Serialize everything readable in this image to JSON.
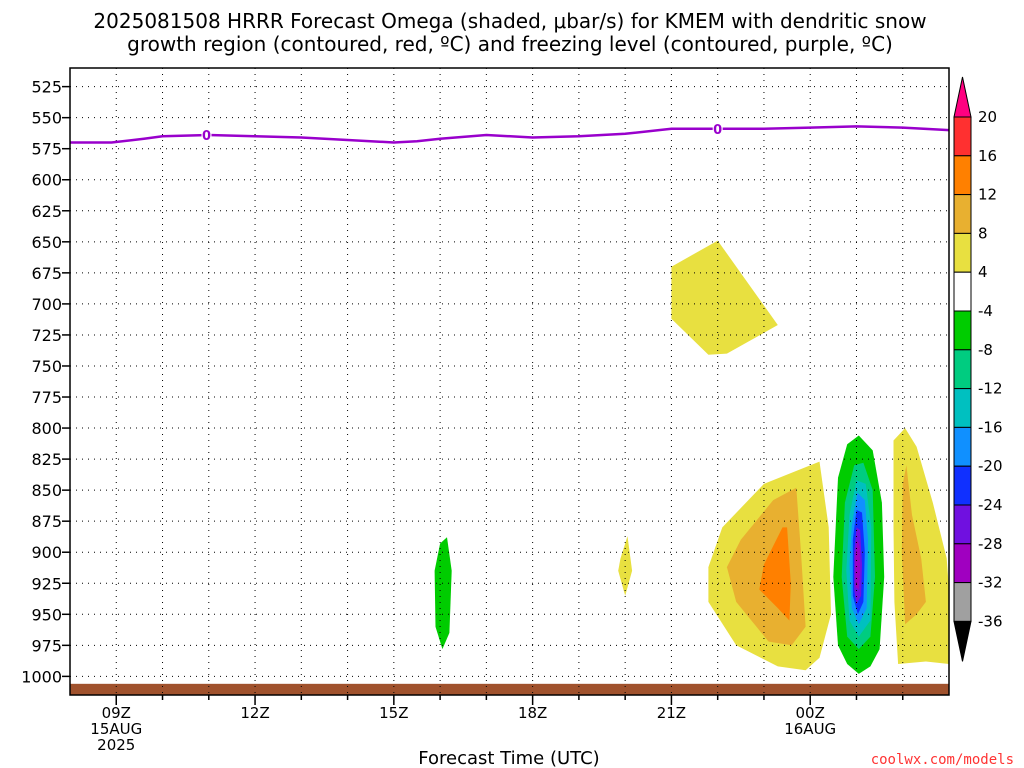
{
  "title_line1": "2025081508 HRRR Forecast Omega (shaded, μbar/s) for KMEM with dendritic snow",
  "title_line2": "growth region (contoured, red, ºC) and freezing level (contoured, purple, ºC)",
  "credit": "coolwx.com/models",
  "chart_data": {
    "type": "time-height cross-section",
    "xlabel": "Forecast Time (UTC)",
    "x_range_hours": [
      8,
      27
    ],
    "x_ticks": [
      {
        "hour": 9,
        "lines": [
          "09Z",
          "15AUG",
          "2025"
        ]
      },
      {
        "hour": 12,
        "lines": [
          "12Z"
        ]
      },
      {
        "hour": 15,
        "lines": [
          "15Z"
        ]
      },
      {
        "hour": 18,
        "lines": [
          "18Z"
        ]
      },
      {
        "hour": 21,
        "lines": [
          "21Z"
        ]
      },
      {
        "hour": 24,
        "lines": [
          "00Z",
          "16AUG"
        ]
      }
    ],
    "y_axis": "pressure (mb)",
    "y_range": [
      510,
      1015
    ],
    "y_ticks": [
      525,
      550,
      575,
      600,
      625,
      650,
      675,
      700,
      725,
      750,
      775,
      800,
      825,
      850,
      875,
      900,
      925,
      950,
      975,
      1000
    ],
    "grid": true,
    "freezing_level": {
      "label": "0",
      "color": "#9900cc",
      "points": [
        [
          8,
          570
        ],
        [
          8.9,
          570
        ],
        [
          9.6,
          567
        ],
        [
          10,
          565
        ],
        [
          11,
          564
        ],
        [
          12,
          565
        ],
        [
          13,
          566
        ],
        [
          14,
          568
        ],
        [
          15,
          570
        ],
        [
          15.5,
          569
        ],
        [
          16,
          567
        ],
        [
          17,
          564
        ],
        [
          18,
          566
        ],
        [
          19,
          565
        ],
        [
          20,
          563
        ],
        [
          21,
          559
        ],
        [
          22,
          559
        ],
        [
          23,
          559
        ],
        [
          24,
          558
        ],
        [
          25,
          557
        ],
        [
          26,
          558
        ],
        [
          27,
          560
        ]
      ],
      "label_hours": [
        10.95,
        22
      ]
    },
    "omega_colorbar": {
      "levels": [
        20,
        16,
        12,
        8,
        4,
        -4,
        -8,
        -12,
        -16,
        -20,
        -24,
        -28,
        -32,
        -36
      ],
      "colors": [
        "#ff0080",
        "#ff3030",
        "#ff8000",
        "#e8b030",
        "#e8e040",
        "#ffffff",
        "#00cc00",
        "#00cc80",
        "#00c0c0",
        "#1090ff",
        "#1030ff",
        "#7010e0",
        "#a000c0",
        "#a0a0a0",
        "#000000"
      ]
    },
    "omega_regions": [
      {
        "level": "4-8",
        "color": "#e8e040",
        "points": [
          [
            21,
            670
          ],
          [
            22,
            649
          ],
          [
            23.3,
            717
          ],
          [
            22.2,
            740
          ],
          [
            21.8,
            741
          ],
          [
            21,
            712
          ]
        ]
      },
      {
        "level": "-4..-8",
        "color": "#00cc00",
        "points": [
          [
            16,
            893
          ],
          [
            16.15,
            888
          ],
          [
            16.25,
            915
          ],
          [
            16.2,
            965
          ],
          [
            16.05,
            978
          ],
          [
            15.9,
            960
          ],
          [
            15.88,
            915
          ]
        ]
      },
      {
        "level": "4-8",
        "color": "#e8e040",
        "points": [
          [
            19.9,
            905
          ],
          [
            20.05,
            887
          ],
          [
            20.15,
            915
          ],
          [
            20.0,
            935
          ],
          [
            19.85,
            915
          ]
        ]
      },
      {
        "level": "4-8",
        "color": "#e8e040",
        "points": [
          [
            22.1,
            880
          ],
          [
            23,
            845
          ],
          [
            24.2,
            827
          ],
          [
            24.4,
            880
          ],
          [
            24.45,
            950
          ],
          [
            24.2,
            985
          ],
          [
            23.9,
            995
          ],
          [
            23.3,
            992
          ],
          [
            22.4,
            975
          ],
          [
            21.8,
            940
          ],
          [
            21.8,
            912
          ]
        ]
      },
      {
        "level": "8-12",
        "color": "#e8b030",
        "points": [
          [
            22.5,
            890
          ],
          [
            23.2,
            858
          ],
          [
            23.7,
            848
          ],
          [
            23.8,
            900
          ],
          [
            23.9,
            960
          ],
          [
            23.6,
            975
          ],
          [
            23.1,
            972
          ],
          [
            22.4,
            940
          ],
          [
            22.2,
            912
          ]
        ]
      },
      {
        "level": "12-16",
        "color": "#ff8000",
        "points": [
          [
            23.0,
            910
          ],
          [
            23.4,
            880
          ],
          [
            23.5,
            880
          ],
          [
            23.58,
            925
          ],
          [
            23.55,
            955
          ],
          [
            23.3,
            945
          ],
          [
            22.9,
            930
          ]
        ]
      },
      {
        "level": "-4..-8",
        "color": "#00cc00",
        "points": [
          [
            24.6,
            840
          ],
          [
            24.8,
            813
          ],
          [
            25.05,
            806
          ],
          [
            25.35,
            818
          ],
          [
            25.55,
            860
          ],
          [
            25.6,
            920
          ],
          [
            25.5,
            978
          ],
          [
            25.3,
            992
          ],
          [
            25.05,
            998
          ],
          [
            24.8,
            990
          ],
          [
            24.6,
            975
          ],
          [
            24.5,
            920
          ]
        ]
      },
      {
        "level": "-8..-12",
        "color": "#00cc80",
        "points": [
          [
            24.75,
            860
          ],
          [
            24.95,
            830
          ],
          [
            25.15,
            828
          ],
          [
            25.35,
            850
          ],
          [
            25.4,
            920
          ],
          [
            25.3,
            968
          ],
          [
            25.05,
            978
          ],
          [
            24.8,
            968
          ],
          [
            24.68,
            920
          ]
        ]
      },
      {
        "level": "-12..-16",
        "color": "#00c0c0",
        "points": [
          [
            24.85,
            870
          ],
          [
            25.0,
            842
          ],
          [
            25.2,
            845
          ],
          [
            25.32,
            880
          ],
          [
            25.3,
            955
          ],
          [
            25.05,
            968
          ],
          [
            24.85,
            955
          ],
          [
            24.78,
            915
          ]
        ]
      },
      {
        "level": "-16..-20",
        "color": "#1090ff",
        "points": [
          [
            24.9,
            878
          ],
          [
            25.02,
            852
          ],
          [
            25.18,
            858
          ],
          [
            25.25,
            890
          ],
          [
            25.22,
            945
          ],
          [
            25.05,
            958
          ],
          [
            24.9,
            945
          ],
          [
            24.85,
            910
          ]
        ]
      },
      {
        "level": "-20..-24",
        "color": "#1030ff",
        "points": [
          [
            24.92,
            890
          ],
          [
            25.0,
            866
          ],
          [
            25.12,
            868
          ],
          [
            25.18,
            900
          ],
          [
            25.15,
            940
          ],
          [
            25.03,
            950
          ],
          [
            24.92,
            935
          ]
        ]
      },
      {
        "level": "-24..-28",
        "color": "#7010e0",
        "points": [
          [
            24.95,
            900
          ],
          [
            25.0,
            880
          ],
          [
            25.08,
            882
          ],
          [
            25.12,
            910
          ],
          [
            25.1,
            935
          ],
          [
            25.0,
            942
          ],
          [
            24.95,
            930
          ]
        ]
      },
      {
        "level": "-28..-32",
        "color": "#a000c0",
        "points": [
          [
            24.97,
            905
          ],
          [
            25.02,
            890
          ],
          [
            25.07,
            895
          ],
          [
            25.08,
            915
          ],
          [
            25.05,
            930
          ],
          [
            24.98,
            928
          ]
        ]
      },
      {
        "level": "4-8",
        "color": "#e8e040",
        "points": [
          [
            25.8,
            810
          ],
          [
            26.05,
            800
          ],
          [
            26.3,
            815
          ],
          [
            26.65,
            860
          ],
          [
            26.95,
            905
          ],
          [
            27,
            930
          ],
          [
            27,
            990
          ],
          [
            26.5,
            988
          ],
          [
            25.9,
            990
          ],
          [
            25.82,
            940
          ],
          [
            25.8,
            880
          ]
        ]
      },
      {
        "level": "8-12",
        "color": "#e8b030",
        "points": [
          [
            26.0,
            845
          ],
          [
            26.08,
            830
          ],
          [
            26.2,
            870
          ],
          [
            26.4,
            905
          ],
          [
            26.5,
            940
          ],
          [
            26.3,
            950
          ],
          [
            26.05,
            958
          ],
          [
            25.98,
            900
          ]
        ]
      }
    ],
    "surface_band": {
      "color": "#a0522d",
      "top_mb": 1006
    }
  }
}
